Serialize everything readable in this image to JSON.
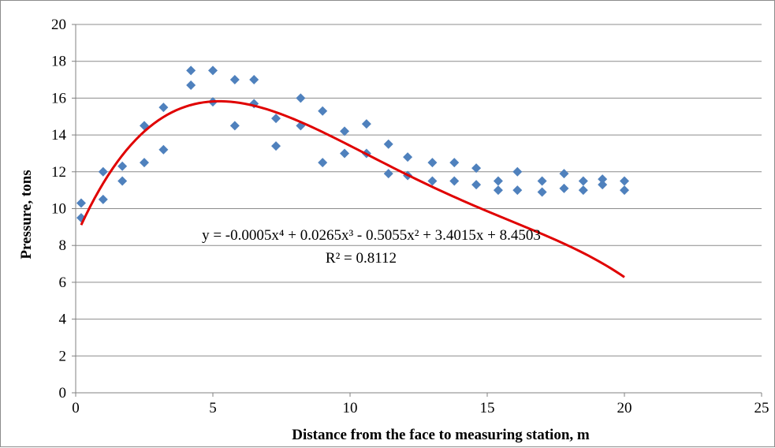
{
  "chart_data": {
    "type": "scatter",
    "xlabel": "Distance from the face to measuring station, m",
    "ylabel": "Pressure, tons",
    "xlim": [
      0,
      25
    ],
    "ylim": [
      0,
      20
    ],
    "xticks": [
      "0",
      "5",
      "10",
      "15",
      "20",
      "25"
    ],
    "yticks": [
      "0",
      "2",
      "4",
      "6",
      "8",
      "10",
      "12",
      "14",
      "16",
      "18",
      "20"
    ],
    "grid": "horizontal",
    "marker_color": "#4f81bd",
    "trendline_color": "#e00000",
    "points": [
      [
        0.2,
        10.3
      ],
      [
        0.2,
        9.5
      ],
      [
        1.0,
        12.0
      ],
      [
        1.0,
        10.5
      ],
      [
        1.7,
        12.3
      ],
      [
        1.7,
        11.5
      ],
      [
        2.5,
        14.5
      ],
      [
        2.5,
        12.5
      ],
      [
        3.2,
        15.5
      ],
      [
        3.2,
        13.2
      ],
      [
        4.2,
        17.5
      ],
      [
        4.2,
        16.7
      ],
      [
        5.0,
        17.5
      ],
      [
        5.0,
        15.8
      ],
      [
        5.8,
        17.0
      ],
      [
        5.8,
        14.5
      ],
      [
        6.5,
        17.0
      ],
      [
        6.5,
        15.7
      ],
      [
        7.3,
        14.9
      ],
      [
        7.3,
        13.4
      ],
      [
        8.2,
        16.0
      ],
      [
        8.2,
        14.5
      ],
      [
        9.0,
        15.3
      ],
      [
        9.0,
        12.5
      ],
      [
        9.8,
        14.2
      ],
      [
        9.8,
        13.0
      ],
      [
        10.6,
        14.6
      ],
      [
        10.6,
        13.0
      ],
      [
        11.4,
        13.5
      ],
      [
        11.4,
        11.9
      ],
      [
        12.1,
        12.8
      ],
      [
        12.1,
        11.8
      ],
      [
        13.0,
        12.5
      ],
      [
        13.0,
        11.5
      ],
      [
        13.8,
        12.5
      ],
      [
        13.8,
        11.5
      ],
      [
        14.6,
        12.2
      ],
      [
        14.6,
        11.3
      ],
      [
        15.4,
        11.5
      ],
      [
        15.4,
        11.0
      ],
      [
        16.1,
        12.0
      ],
      [
        16.1,
        11.0
      ],
      [
        17.0,
        11.5
      ],
      [
        17.0,
        10.9
      ],
      [
        17.8,
        11.9
      ],
      [
        17.8,
        11.1
      ],
      [
        18.5,
        11.5
      ],
      [
        18.5,
        11.0
      ],
      [
        19.2,
        11.6
      ],
      [
        19.2,
        11.3
      ],
      [
        20.0,
        11.5
      ],
      [
        20.0,
        11.0
      ]
    ],
    "trendline": {
      "type": "polynomial",
      "coefficients": [
        8.4503,
        3.4015,
        -0.5055,
        0.0265,
        -0.0005
      ],
      "x_range": [
        0.2,
        20
      ]
    },
    "annotations": {
      "equation": "y = -0.0005x⁴ + 0.0265x³ - 0.5055x² + 3.4015x + 8.4503",
      "r_squared": "R² = 0.8112"
    }
  }
}
